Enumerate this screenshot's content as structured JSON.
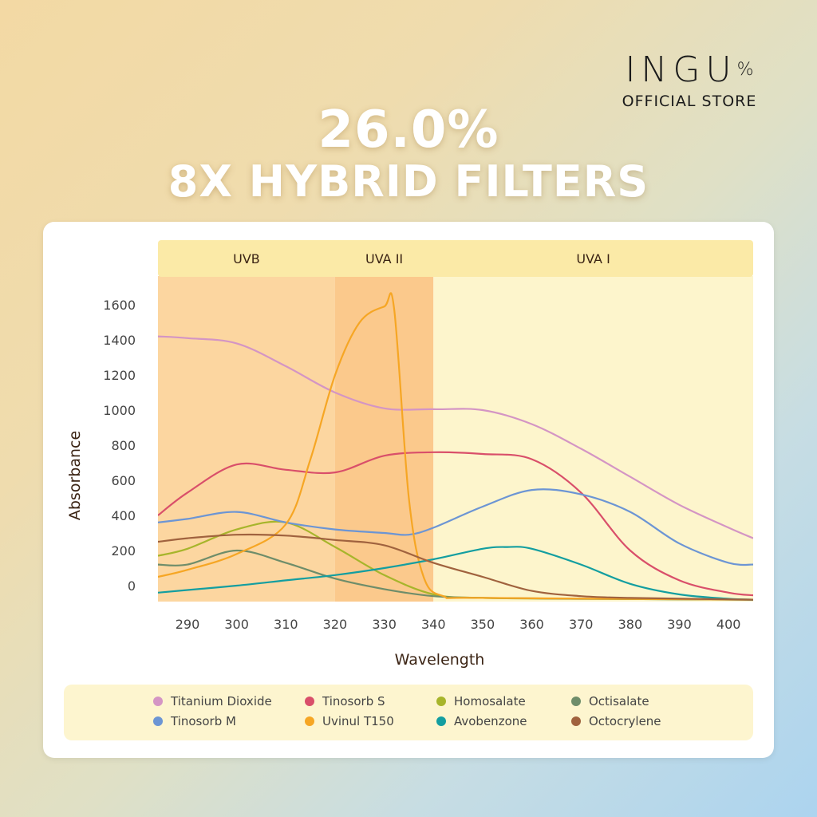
{
  "brand": {
    "name": "INGU",
    "symbol": "%",
    "subtitle": "OFFICIAL STORE"
  },
  "headline": {
    "percent": "26.0%",
    "subtitle": "8X HYBRID FILTERS"
  },
  "chart_data": {
    "type": "line",
    "xlabel": "Wavelength",
    "ylabel": "Absorbance",
    "xlim": [
      284,
      405
    ],
    "ylim": [
      0,
      1600
    ],
    "x_ticks": [
      290,
      300,
      310,
      320,
      330,
      340,
      350,
      360,
      370,
      380,
      390,
      400
    ],
    "y_ticks": [
      0,
      200,
      400,
      600,
      800,
      1000,
      1200,
      1400,
      1600
    ],
    "regions": [
      {
        "label": "UVB",
        "from": 284,
        "to": 320,
        "color": "#fcd6a0"
      },
      {
        "label": "UVA II",
        "from": 320,
        "to": 340,
        "color": "#fbc98c"
      },
      {
        "label": "UVA I",
        "from": 340,
        "to": 405,
        "color": "#fdf5cc"
      }
    ],
    "band_color": "#fbeaa7",
    "series": [
      {
        "name": "Titanium Dioxide",
        "color": "#d495c4",
        "points": [
          [
            284,
            1420
          ],
          [
            290,
            1410
          ],
          [
            300,
            1380
          ],
          [
            310,
            1250
          ],
          [
            320,
            1100
          ],
          [
            330,
            1010
          ],
          [
            340,
            1005
          ],
          [
            350,
            1000
          ],
          [
            360,
            920
          ],
          [
            370,
            780
          ],
          [
            380,
            620
          ],
          [
            390,
            460
          ],
          [
            400,
            330
          ],
          [
            405,
            270
          ]
        ]
      },
      {
        "name": "Tinosorb S",
        "color": "#d94f6a",
        "points": [
          [
            284,
            400
          ],
          [
            290,
            530
          ],
          [
            300,
            690
          ],
          [
            310,
            660
          ],
          [
            320,
            645
          ],
          [
            330,
            740
          ],
          [
            340,
            760
          ],
          [
            350,
            750
          ],
          [
            360,
            720
          ],
          [
            370,
            530
          ],
          [
            380,
            200
          ],
          [
            390,
            30
          ],
          [
            400,
            -40
          ],
          [
            405,
            -55
          ]
        ]
      },
      {
        "name": "Homosalate",
        "color": "#a7b52b",
        "points": [
          [
            284,
            170
          ],
          [
            290,
            210
          ],
          [
            300,
            320
          ],
          [
            310,
            360
          ],
          [
            320,
            220
          ],
          [
            330,
            60
          ],
          [
            340,
            -50
          ],
          [
            350,
            -70
          ],
          [
            370,
            -75
          ],
          [
            405,
            -80
          ]
        ]
      },
      {
        "name": "Octisalate",
        "color": "#6e8d6a",
        "points": [
          [
            284,
            120
          ],
          [
            290,
            120
          ],
          [
            300,
            200
          ],
          [
            310,
            130
          ],
          [
            320,
            40
          ],
          [
            330,
            -20
          ],
          [
            340,
            -60
          ],
          [
            350,
            -70
          ],
          [
            370,
            -75
          ],
          [
            405,
            -80
          ]
        ]
      },
      {
        "name": "Tinosorb M",
        "color": "#6c95d4",
        "points": [
          [
            284,
            360
          ],
          [
            290,
            380
          ],
          [
            300,
            420
          ],
          [
            310,
            360
          ],
          [
            320,
            320
          ],
          [
            330,
            300
          ],
          [
            335,
            290
          ],
          [
            340,
            330
          ],
          [
            350,
            450
          ],
          [
            360,
            545
          ],
          [
            370,
            520
          ],
          [
            380,
            420
          ],
          [
            390,
            240
          ],
          [
            400,
            130
          ],
          [
            405,
            120
          ]
        ]
      },
      {
        "name": "Uvinul T150",
        "color": "#f6a624",
        "points": [
          [
            284,
            50
          ],
          [
            290,
            90
          ],
          [
            300,
            180
          ],
          [
            310,
            350
          ],
          [
            315,
            720
          ],
          [
            320,
            1200
          ],
          [
            325,
            1500
          ],
          [
            330,
            1590
          ],
          [
            332,
            1580
          ],
          [
            335,
            500
          ],
          [
            338,
            50
          ],
          [
            342,
            -60
          ],
          [
            350,
            -70
          ],
          [
            405,
            -80
          ]
        ]
      },
      {
        "name": "Avobenzone",
        "color": "#139ea0",
        "points": [
          [
            284,
            -40
          ],
          [
            290,
            -25
          ],
          [
            300,
            0
          ],
          [
            310,
            30
          ],
          [
            320,
            60
          ],
          [
            330,
            100
          ],
          [
            340,
            150
          ],
          [
            350,
            210
          ],
          [
            355,
            220
          ],
          [
            360,
            210
          ],
          [
            370,
            120
          ],
          [
            380,
            10
          ],
          [
            390,
            -50
          ],
          [
            400,
            -75
          ],
          [
            405,
            -80
          ]
        ]
      },
      {
        "name": "Octocrylene",
        "color": "#a0623e",
        "points": [
          [
            284,
            250
          ],
          [
            290,
            270
          ],
          [
            300,
            290
          ],
          [
            310,
            285
          ],
          [
            320,
            260
          ],
          [
            330,
            230
          ],
          [
            340,
            130
          ],
          [
            350,
            50
          ],
          [
            360,
            -30
          ],
          [
            370,
            -60
          ],
          [
            380,
            -70
          ],
          [
            405,
            -80
          ]
        ]
      }
    ]
  },
  "colors": {
    "axis_text": "#3b2414",
    "tick_text": "#444444"
  }
}
